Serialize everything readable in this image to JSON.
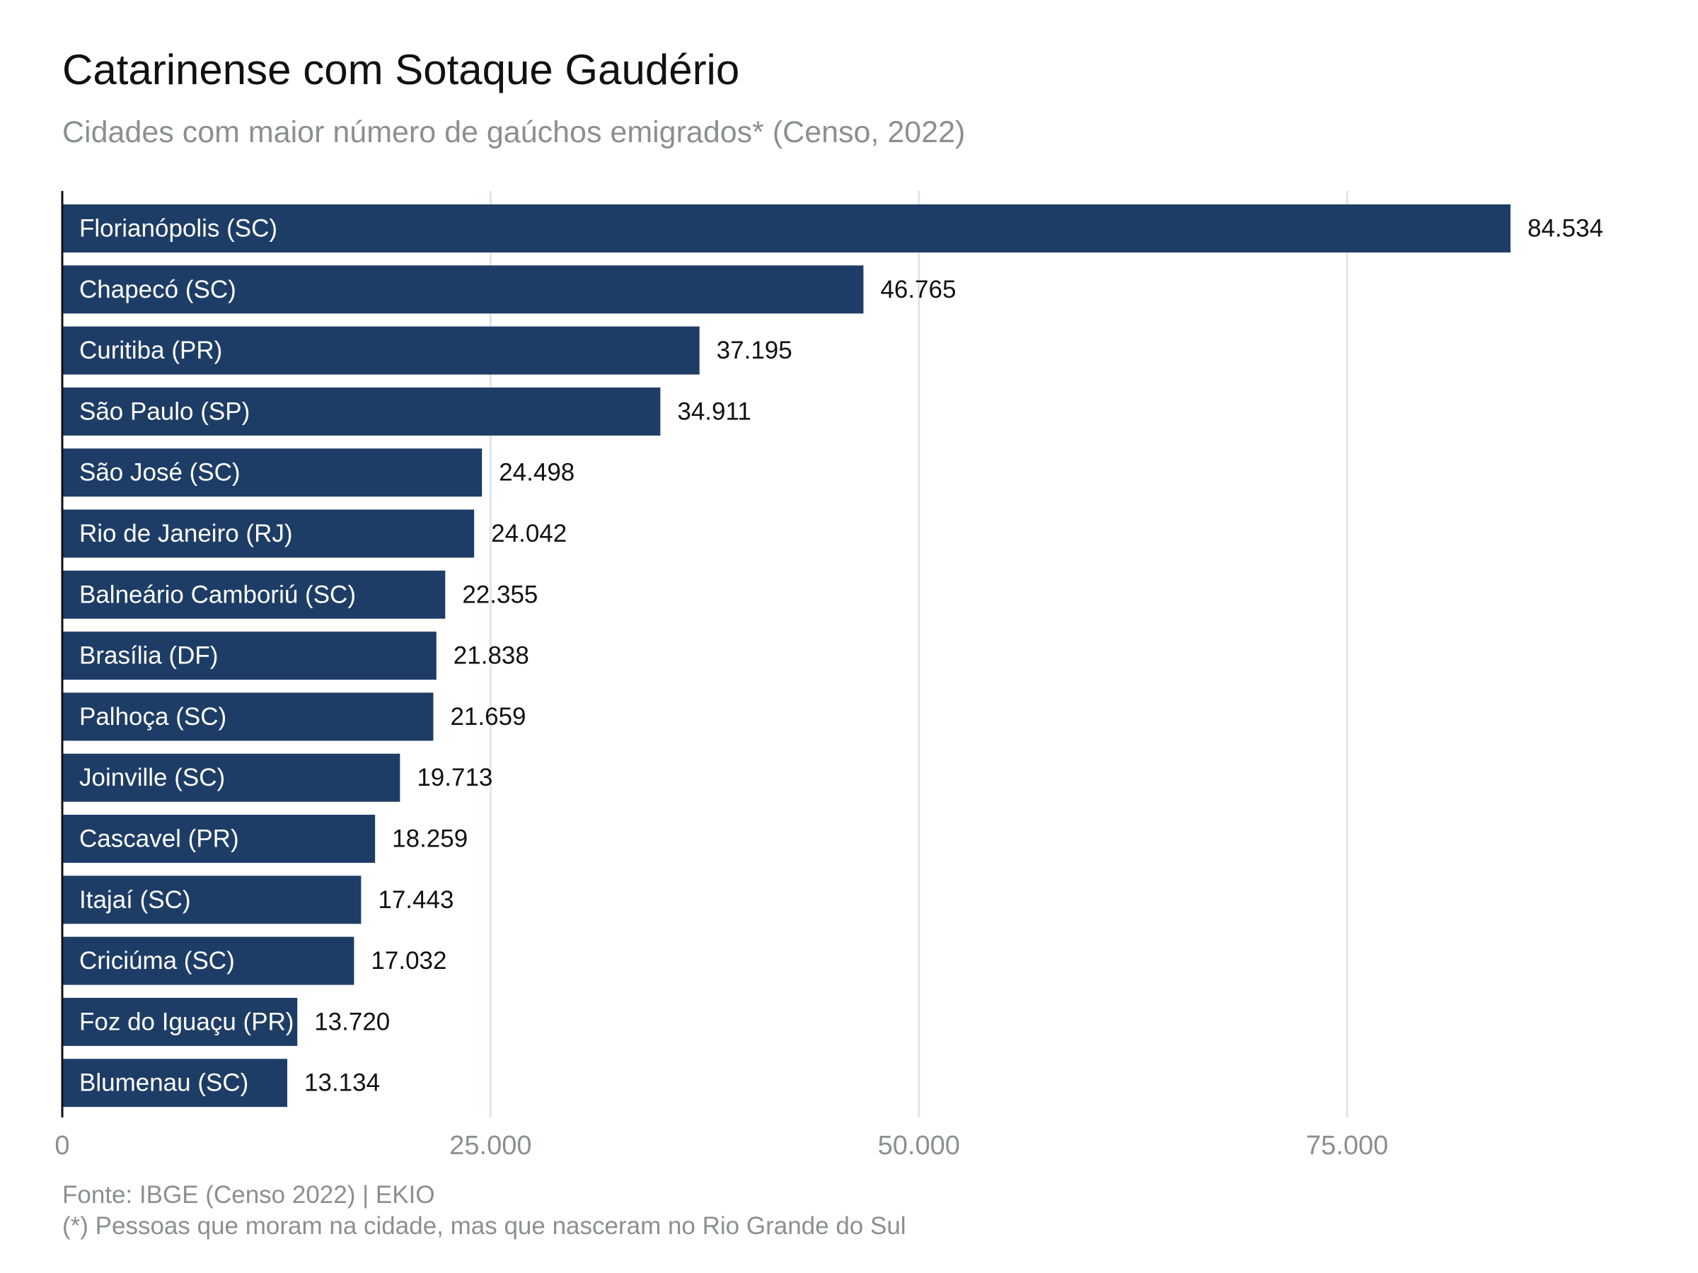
{
  "title": "Catarinense com Sotaque Gaudério",
  "subtitle": "Cidades com maior número de gaúchos emigrados* (Censo, 2022)",
  "caption": {
    "source": "Fonte: IBGE (Censo 2022) | EKIO",
    "note": "(*) Pessoas que moram na cidade, mas que nasceram no Rio Grande do Sul"
  },
  "colors": {
    "bar": "#1e3d66",
    "bar_label_text": "#ffffff",
    "value_label_text": "#111111",
    "grid": "#dce6f0",
    "axis": "#111111",
    "tick_text": "#8a9090"
  },
  "chart_data": {
    "type": "bar",
    "orientation": "horizontal",
    "categories": [
      "Florianópolis (SC)",
      "Chapecó (SC)",
      "Curitiba (PR)",
      "São Paulo (SP)",
      "São José (SC)",
      "Rio de Janeiro (RJ)",
      "Balneário Camboriú (SC)",
      "Brasília (DF)",
      "Palhoça (SC)",
      "Joinville (SC)",
      "Cascavel (PR)",
      "Itajaí (SC)",
      "Criciúma (SC)",
      "Foz do Iguaçu (PR)",
      "Blumenau (SC)"
    ],
    "values": [
      84534,
      46765,
      37195,
      34911,
      24498,
      24042,
      22355,
      21838,
      21659,
      19713,
      18259,
      17443,
      17032,
      13720,
      13134
    ],
    "value_labels": [
      "84.534",
      "46.765",
      "37.195",
      "34.911",
      "24.498",
      "24.042",
      "22.355",
      "21.838",
      "21.659",
      "19.713",
      "18.259",
      "17.443",
      "17.032",
      "13.720",
      "13.134"
    ],
    "x_ticks": [
      0,
      25000,
      50000,
      75000
    ],
    "x_tick_labels": [
      "0",
      "25.000",
      "50.000",
      "75.000"
    ],
    "xlim": [
      0,
      90000
    ],
    "xlabel": "",
    "ylabel": "",
    "grid": "vertical",
    "legend": "none"
  }
}
